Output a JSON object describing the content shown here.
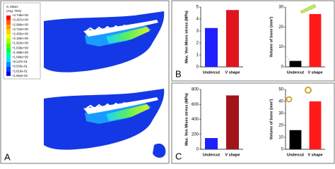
{
  "panels": [
    {
      "label": "A",
      "legend": {
        "title": "S, Mises",
        "subtitle": "(Avg: 75%)",
        "labels": [
          "+4.745e+00",
          "+3.267e+00",
          "+2.996e+00",
          "+2.724e+00",
          "+2.453e+00",
          "+2.182e+00",
          "+1.910e+00",
          "+1.639e+00",
          "+1.368e+00",
          "+1.096e+00",
          "+8.247e-01",
          "+5.533e-01",
          "+2.819e-01",
          "+1.054e-02"
        ]
      }
    },
    {
      "label": "B"
    },
    {
      "label": "C"
    }
  ],
  "chart_data": [
    {
      "type": "bar",
      "ylabel": "Max. Von Mises stress (MPa)",
      "categories": [
        "Undercut",
        "V shape"
      ],
      "values": [
        3.25,
        4.75
      ],
      "colors": [
        "#1f1fff",
        "#e0141e"
      ],
      "ylim": [
        0,
        5
      ],
      "yticks": [
        0,
        1,
        2,
        3,
        4,
        5
      ]
    },
    {
      "type": "bar",
      "ylabel": "Volume of bone (mm³)",
      "categories": [
        "Undercut",
        "V shape"
      ],
      "values": [
        3,
        26.5
      ],
      "colors": [
        "#000000",
        "#ff1a1a"
      ],
      "ylim": [
        0,
        30
      ],
      "yticks": [
        0,
        10,
        20,
        30
      ]
    },
    {
      "type": "bar",
      "ylabel": "Max. Von Mises stress (MPa)",
      "categories": [
        "Undercut",
        "V shape"
      ],
      "values": [
        150,
        720
      ],
      "colors": [
        "#1f1fff",
        "#a0141a"
      ],
      "ylim": [
        0,
        800
      ],
      "yticks": [
        0,
        200,
        400,
        600,
        800
      ]
    },
    {
      "type": "bar",
      "ylabel": "Volume of bone (mm³)",
      "categories": [
        "Undercut",
        "V shape"
      ],
      "values": [
        16,
        40
      ],
      "colors": [
        "#000000",
        "#ff1a1a"
      ],
      "ylim": [
        0,
        50
      ],
      "yticks": [
        0,
        10,
        20,
        30,
        40,
        50
      ]
    }
  ]
}
